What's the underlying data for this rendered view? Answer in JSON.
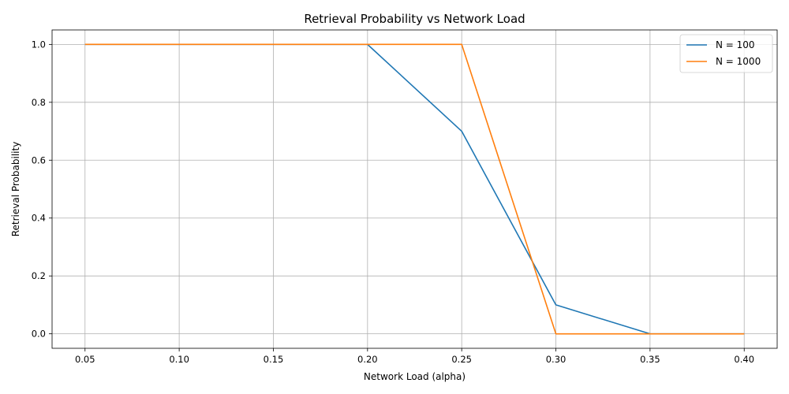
{
  "chart_data": {
    "type": "line",
    "title": "Retrieval Probability vs Network Load",
    "xlabel": "Network Load (alpha)",
    "ylabel": "Retrieval Probability",
    "x": [
      0.05,
      0.1,
      0.15,
      0.2,
      0.25,
      0.3,
      0.35,
      0.4
    ],
    "xticks": [
      "0.05",
      "0.10",
      "0.15",
      "0.20",
      "0.25",
      "0.30",
      "0.35",
      "0.40"
    ],
    "yticks": [
      "0.0",
      "0.2",
      "0.4",
      "0.6",
      "0.8",
      "1.0"
    ],
    "xlim": [
      0.0325,
      0.4175
    ],
    "ylim": [
      -0.05,
      1.05
    ],
    "grid": true,
    "legend_position": "top-right",
    "series": [
      {
        "name": "N = 100",
        "color": "#1f77b4",
        "values": [
          1.0,
          1.0,
          1.0,
          1.0,
          0.7,
          0.1,
          0.0,
          0.0
        ]
      },
      {
        "name": "N = 1000",
        "color": "#ff7f0e",
        "values": [
          1.0,
          1.0,
          1.0,
          1.0,
          1.0,
          0.0,
          0.0,
          0.0
        ]
      }
    ]
  }
}
